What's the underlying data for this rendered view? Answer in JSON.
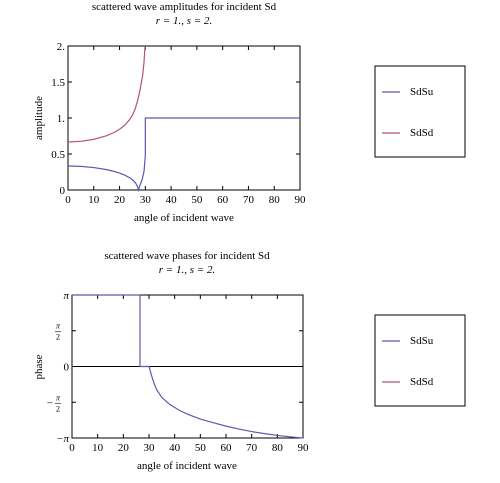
{
  "colors": {
    "sdsu": "#5b5bab",
    "sdsd": "#b5517e",
    "axis": "#000000"
  },
  "chart_data": [
    {
      "id": "amplitude",
      "type": "line",
      "title": "scattered wave amplitudes for incident Sd",
      "subtitle": "r = 1., s = 2.",
      "xlabel": "angle of incident wave",
      "ylabel": "amplitude",
      "xlim": [
        0,
        90
      ],
      "ylim": [
        0,
        2
      ],
      "xticks": [
        0,
        10,
        20,
        30,
        40,
        50,
        60,
        70,
        80,
        90
      ],
      "xtick_labels": [
        "0",
        "10",
        "20",
        "30",
        "40",
        "50",
        "60",
        "70",
        "80",
        "90"
      ],
      "yticks": [
        0,
        0.5,
        1,
        1.5,
        2
      ],
      "ytick_labels": [
        "0",
        "0.5",
        "1.",
        "1.5",
        "2."
      ],
      "legend": "right",
      "series": [
        {
          "name": "SdSu",
          "color_key": "sdsu",
          "points": [
            [
              0,
              0.333
            ],
            [
              5,
              0.328
            ],
            [
              10,
              0.312
            ],
            [
              15,
              0.283
            ],
            [
              18,
              0.257
            ],
            [
              20,
              0.236
            ],
            [
              22,
              0.207
            ],
            [
              24,
              0.168
            ],
            [
              25,
              0.143
            ],
            [
              26,
              0.107
            ],
            [
              26.5,
              0.08
            ],
            [
              27,
              0.045
            ],
            [
              27.3,
              0.0
            ],
            [
              28,
              0.07
            ],
            [
              28.8,
              0.15
            ],
            [
              29.5,
              0.26
            ],
            [
              30,
              0.48
            ],
            [
              30,
              1
            ],
            [
              90,
              1
            ]
          ]
        },
        {
          "name": "SdSd",
          "color_key": "sdsd",
          "points": [
            [
              0,
              0.667
            ],
            [
              5,
              0.676
            ],
            [
              10,
              0.703
            ],
            [
              15,
              0.755
            ],
            [
              18,
              0.8
            ],
            [
              20,
              0.843
            ],
            [
              22,
              0.9
            ],
            [
              24,
              0.983
            ],
            [
              25,
              1.04
            ],
            [
              26,
              1.12
            ],
            [
              27,
              1.24
            ],
            [
              28,
              1.4
            ],
            [
              29,
              1.6
            ],
            [
              29.5,
              1.78
            ],
            [
              29.9,
              2.0
            ]
          ]
        }
      ]
    },
    {
      "id": "phase",
      "type": "line",
      "title": "scattered wave phases for incident Sd",
      "subtitle": "r = 1., s = 2.",
      "xlabel": "angle of incident wave",
      "ylabel": "phase",
      "xlim": [
        0,
        90
      ],
      "ylim": [
        -3.14159,
        3.14159
      ],
      "xticks": [
        0,
        10,
        20,
        30,
        40,
        50,
        60,
        70,
        80,
        90
      ],
      "xtick_labels": [
        "0",
        "10",
        "20",
        "30",
        "40",
        "50",
        "60",
        "70",
        "80",
        "90"
      ],
      "yticks": [
        -3.14159,
        -1.5708,
        0,
        1.5708,
        3.14159
      ],
      "ytick_labels": [
        "-π",
        "-π/2",
        "0",
        "π/2",
        "π"
      ],
      "legend": "right",
      "series": [
        {
          "name": "SdSu",
          "color_key": "sdsu",
          "points": [
            [
              0,
              3.14159
            ],
            [
              26.5,
              3.14159
            ],
            [
              26.5,
              0
            ],
            [
              30,
              0
            ],
            [
              31,
              -0.4
            ],
            [
              32,
              -0.75
            ],
            [
              33,
              -1.02
            ],
            [
              35,
              -1.36
            ],
            [
              38,
              -1.66
            ],
            [
              42,
              -1.94
            ],
            [
              46,
              -2.14
            ],
            [
              50,
              -2.31
            ],
            [
              55,
              -2.47
            ],
            [
              60,
              -2.62
            ],
            [
              65,
              -2.75
            ],
            [
              70,
              -2.86
            ],
            [
              75,
              -2.95
            ],
            [
              80,
              -3.03
            ],
            [
              85,
              -3.09
            ],
            [
              90,
              -3.14159
            ]
          ]
        },
        {
          "name": "SdSd",
          "color_key": "sdsd",
          "points": []
        }
      ]
    }
  ]
}
